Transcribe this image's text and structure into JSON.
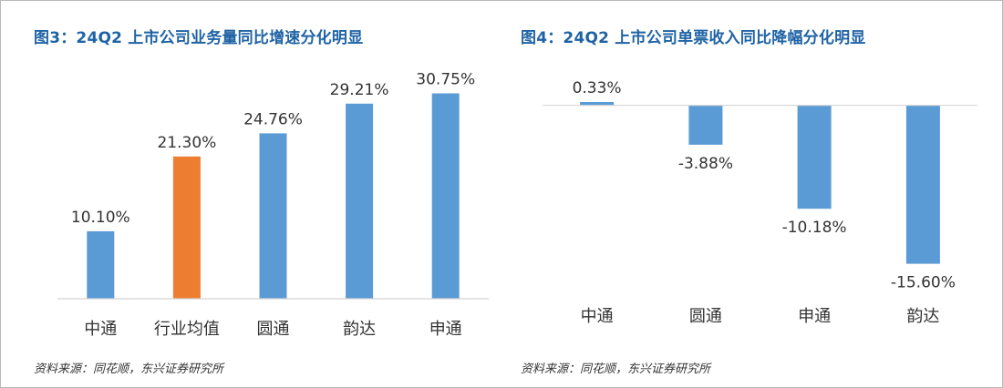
{
  "charts": [
    {
      "title": "图3：24Q2 上市公司业务量同比增速分化明显",
      "source": "资料来源：同花顺，东兴证券研究所",
      "chart_data": {
        "type": "bar",
        "categories": [
          "中通",
          "行业均值",
          "圆通",
          "韵达",
          "申通"
        ],
        "values": [
          10.1,
          21.3,
          24.76,
          29.21,
          30.75
        ],
        "value_labels": [
          "10.10%",
          "21.30%",
          "24.76%",
          "29.21%",
          "30.75%"
        ],
        "unit": "%",
        "ylim": [
          0,
          33
        ],
        "grid": false,
        "legend": "none",
        "colors": [
          "#5b9bd5",
          "#ed7d31",
          "#5b9bd5",
          "#5b9bd5",
          "#5b9bd5"
        ]
      }
    },
    {
      "title": "图4：24Q2 上市公司单票收入同比降幅分化明显",
      "source": "资料来源：同花顺，东兴证券研究所",
      "chart_data": {
        "type": "bar",
        "categories": [
          "中通",
          "圆通",
          "申通",
          "韵达"
        ],
        "values": [
          0.33,
          -3.88,
          -10.18,
          -15.6
        ],
        "value_labels": [
          "0.33%",
          "-3.88%",
          "-10.18%",
          "-15.60%"
        ],
        "unit": "%",
        "ylim": [
          -16,
          0.6
        ],
        "grid": false,
        "legend": "none",
        "colors": [
          "#5b9bd5",
          "#5b9bd5",
          "#5b9bd5",
          "#5b9bd5"
        ]
      }
    }
  ]
}
